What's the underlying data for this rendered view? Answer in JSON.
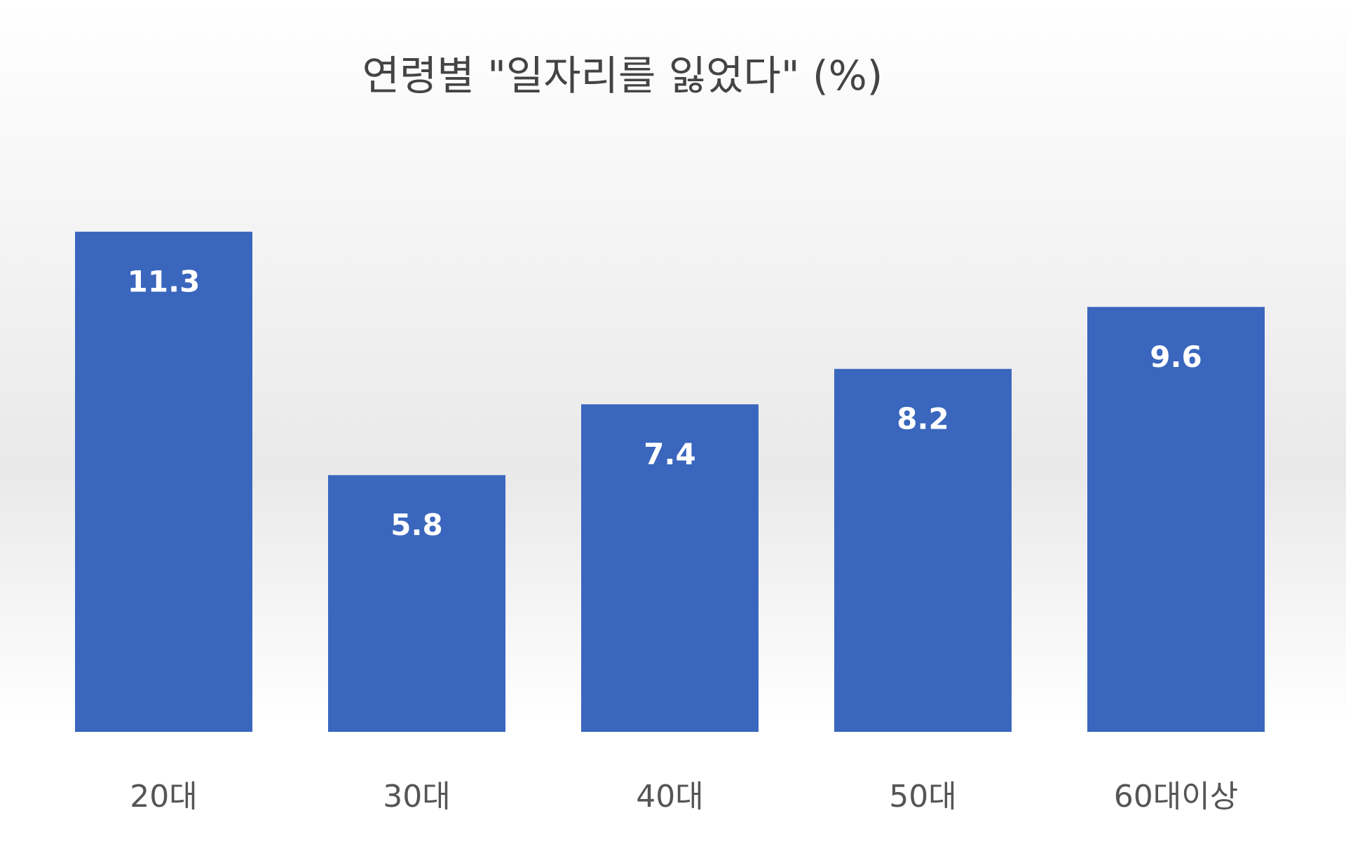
{
  "chart_data": {
    "type": "bar",
    "title": "연령별 \"일자리를 잃었다\" (%)",
    "categories": [
      "20대",
      "30대",
      "40대",
      "50대",
      "60대이상"
    ],
    "values": [
      11.3,
      5.8,
      7.4,
      8.2,
      9.6
    ],
    "color": "#3a66bd"
  }
}
